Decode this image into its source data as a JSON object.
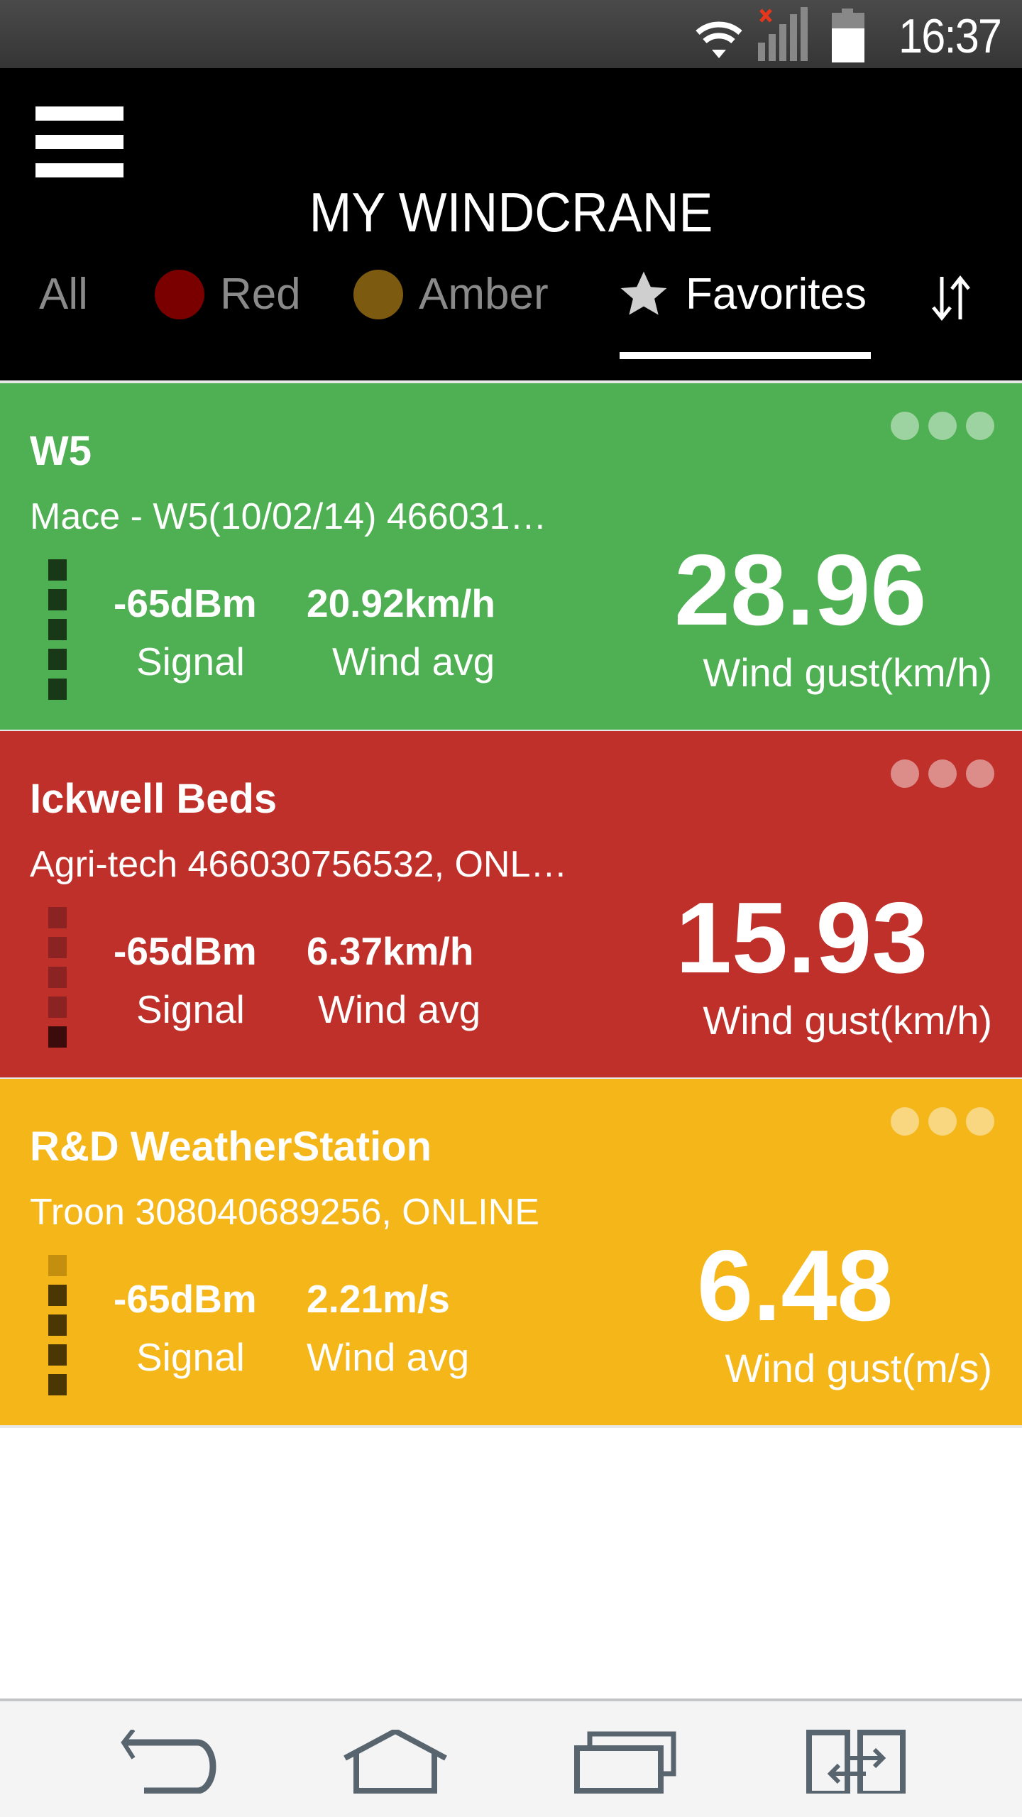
{
  "status_bar": {
    "time": "16:37",
    "icons": [
      "wifi-icon",
      "cellular-no-signal-icon",
      "battery-icon"
    ]
  },
  "app_bar": {
    "title": "MY WINDCRANE",
    "menu_icon": "hamburger-menu-icon"
  },
  "tabs": [
    {
      "label": "All",
      "active": false
    },
    {
      "label": "Red",
      "active": false,
      "dot_color": "#7a0000"
    },
    {
      "label": "Amber",
      "active": false,
      "dot_color": "#7c5a10"
    },
    {
      "label": "Favorites",
      "active": true,
      "icon": "star-icon"
    }
  ],
  "sort_icon": "sort-arrows-icon",
  "cards": [
    {
      "name": "W5",
      "subtitle": "Mace - W5(10/02/14) 466031…",
      "signal_value": "-65dBm",
      "signal_label": "Signal",
      "wind_avg_value": "20.92km/h",
      "wind_avg_label": "Wind avg",
      "gust_value": "28.96",
      "gust_label": "Wind gust(km/h)",
      "signal_level": 5,
      "color": "#4eb052"
    },
    {
      "name": "Ickwell Beds",
      "subtitle": "Agri-tech 466030756532, ONL…",
      "signal_value": "-65dBm",
      "signal_label": "Signal",
      "wind_avg_value": "6.37km/h",
      "wind_avg_label": "Wind avg",
      "gust_value": "15.93",
      "gust_label": "Wind gust(km/h)",
      "signal_level": 1,
      "color": "#c0302b"
    },
    {
      "name": "R&D WeatherStation",
      "subtitle": "Troon 308040689256, ONLINE",
      "signal_value": "-65dBm",
      "signal_label": "Signal",
      "wind_avg_value": "2.21m/s",
      "wind_avg_label": "Wind avg",
      "gust_value": "6.48",
      "gust_label": "Wind gust(m/s)",
      "signal_level": 4,
      "color": "#f4b619"
    }
  ],
  "nav_bar": {
    "buttons": [
      "back-icon",
      "home-icon",
      "recent-apps-icon",
      "dual-window-icon"
    ]
  }
}
